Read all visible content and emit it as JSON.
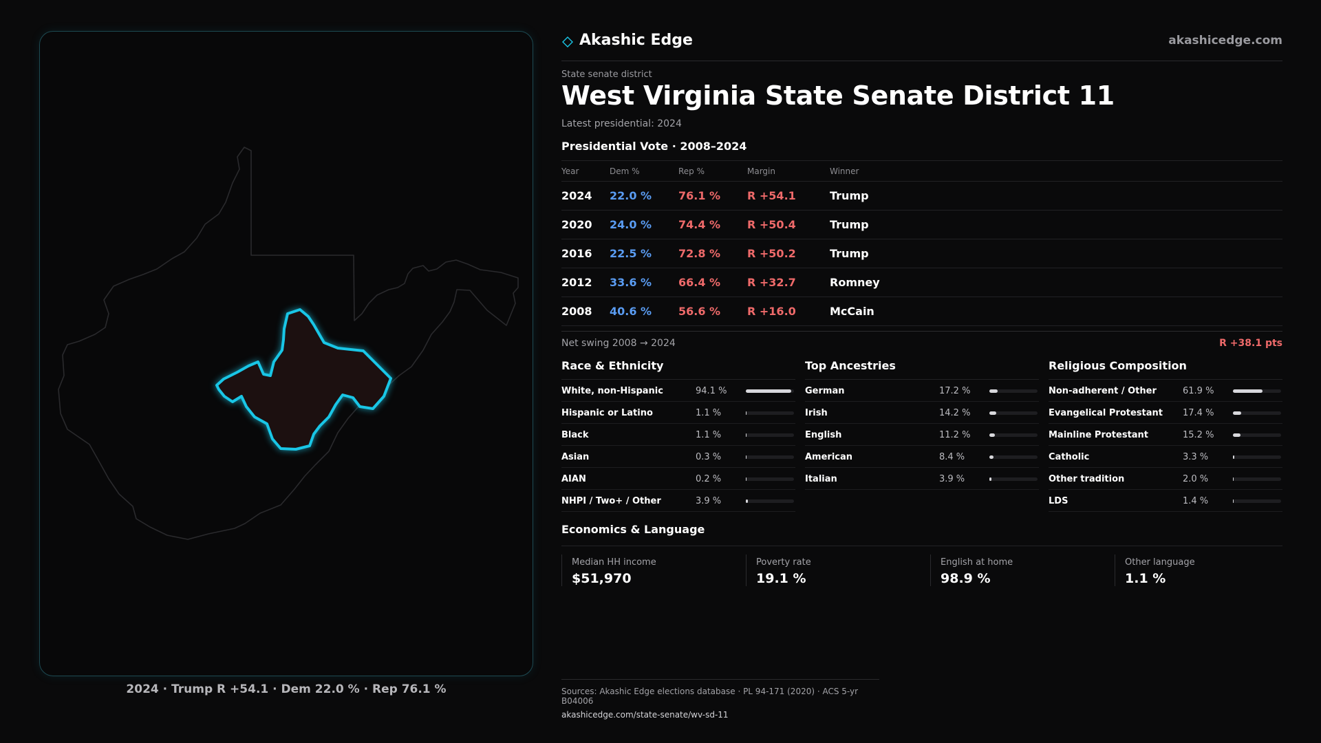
{
  "brand": {
    "name": "Akashic Edge",
    "url": "akashicedge.com"
  },
  "header": {
    "eyebrow": "State senate district",
    "title": "West Virginia State Senate District 11",
    "subtitle": "Latest presidential: 2024"
  },
  "map": {
    "caption": "2024 · Trump R +54.1 · Dem 22.0 % · Rep 76.1 %"
  },
  "vote": {
    "title": "Presidential Vote · 2008–2024",
    "columns": {
      "year": "Year",
      "dem": "Dem %",
      "rep": "Rep %",
      "margin": "Margin",
      "winner": "Winner"
    },
    "rows": [
      {
        "year": "2024",
        "dem": "22.0 %",
        "rep": "76.1 %",
        "margin": "R +54.1",
        "winner": "Trump"
      },
      {
        "year": "2020",
        "dem": "24.0 %",
        "rep": "74.4 %",
        "margin": "R +50.4",
        "winner": "Trump"
      },
      {
        "year": "2016",
        "dem": "22.5 %",
        "rep": "72.8 %",
        "margin": "R +50.2",
        "winner": "Trump"
      },
      {
        "year": "2012",
        "dem": "33.6 %",
        "rep": "66.4 %",
        "margin": "R +32.7",
        "winner": "Romney"
      },
      {
        "year": "2008",
        "dem": "40.6 %",
        "rep": "56.6 %",
        "margin": "R +16.0",
        "winner": "McCain"
      }
    ],
    "swing_label": "Net swing 2008 → 2024",
    "swing_value": "R +38.1 pts"
  },
  "race": {
    "title": "Race & Ethnicity",
    "rows": [
      {
        "label": "White, non-Hispanic",
        "pct": "94.1 %",
        "share": 0.941
      },
      {
        "label": "Hispanic or Latino",
        "pct": "1.1 %",
        "share": 0.011
      },
      {
        "label": "Black",
        "pct": "1.1 %",
        "share": 0.011
      },
      {
        "label": "Asian",
        "pct": "0.3 %",
        "share": 0.003
      },
      {
        "label": "AIAN",
        "pct": "0.2 %",
        "share": 0.002
      },
      {
        "label": "NHPI / Two+ / Other",
        "pct": "3.9 %",
        "share": 0.039
      }
    ]
  },
  "ancestry": {
    "title": "Top Ancestries",
    "rows": [
      {
        "label": "German",
        "pct": "17.2 %",
        "share": 0.172
      },
      {
        "label": "Irish",
        "pct": "14.2 %",
        "share": 0.142
      },
      {
        "label": "English",
        "pct": "11.2 %",
        "share": 0.112
      },
      {
        "label": "American",
        "pct": "8.4 %",
        "share": 0.084
      },
      {
        "label": "Italian",
        "pct": "3.9 %",
        "share": 0.039
      }
    ]
  },
  "religion": {
    "title": "Religious Composition",
    "rows": [
      {
        "label": "Non-adherent / Other",
        "pct": "61.9 %",
        "share": 0.619
      },
      {
        "label": "Evangelical Protestant",
        "pct": "17.4 %",
        "share": 0.174
      },
      {
        "label": "Mainline Protestant",
        "pct": "15.2 %",
        "share": 0.152
      },
      {
        "label": "Catholic",
        "pct": "3.3 %",
        "share": 0.033
      },
      {
        "label": "Other tradition",
        "pct": "2.0 %",
        "share": 0.02
      },
      {
        "label": "LDS",
        "pct": "1.4 %",
        "share": 0.014
      }
    ]
  },
  "economics": {
    "title": "Economics & Language",
    "items": [
      {
        "label": "Median HH income",
        "value": "$51,970"
      },
      {
        "label": "Poverty rate",
        "value": "19.1 %"
      },
      {
        "label": "English at home",
        "value": "98.9 %"
      },
      {
        "label": "Other language",
        "value": "1.1 %"
      }
    ]
  },
  "footer": {
    "sources": "Sources: Akashic Edge elections database · PL 94-171 (2020) · ACS 5-yr B04006",
    "link": "akashicedge.com/state-senate/wv-sd-11"
  },
  "colors": {
    "dem": "#5a9cf2",
    "rep": "#ef6a6a",
    "accent": "#19c6e6"
  }
}
